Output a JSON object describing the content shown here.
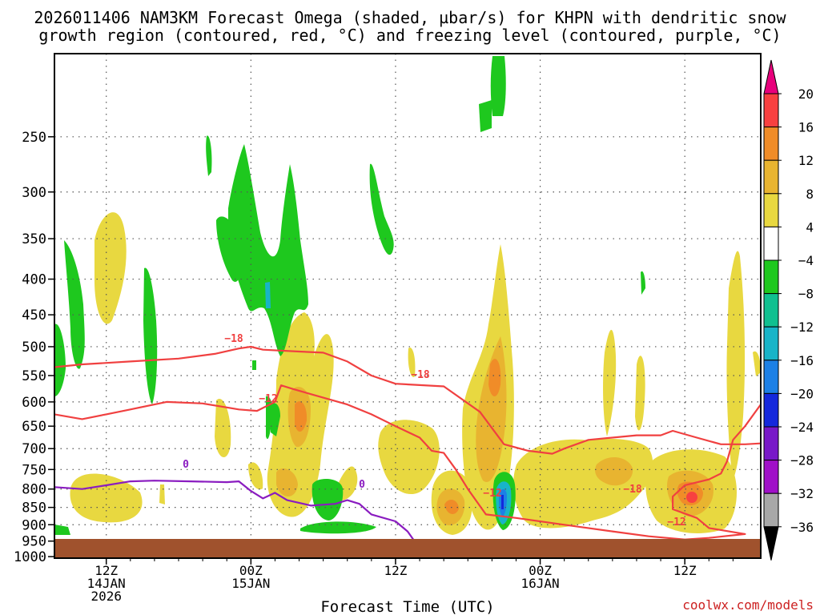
{
  "chart_data": {
    "type": "heatmap",
    "title": [
      "2026011406 NAM3KM Forecast Omega (shaded, µbar/s) for KHPN with dendritic snow",
      "growth region (contoured, red, °C) and freezing level (contoured, purple, °C)"
    ],
    "xlabel": "Forecast Time (UTC)",
    "xlim_hours": [
      -4.3,
      54.3
    ],
    "x_ticks": [
      {
        "hour": 0,
        "lines": [
          "12Z",
          "14JAN",
          "2026"
        ]
      },
      {
        "hour": 12,
        "lines": [
          "00Z",
          "15JAN"
        ]
      },
      {
        "hour": 24,
        "lines": [
          "12Z"
        ]
      },
      {
        "hour": 36,
        "lines": [
          "00Z",
          "16JAN"
        ]
      },
      {
        "hour": 48,
        "lines": [
          "12Z"
        ]
      }
    ],
    "y_ticks_hpa": [
      250,
      300,
      350,
      400,
      450,
      500,
      550,
      600,
      650,
      700,
      750,
      800,
      850,
      900,
      950,
      1000
    ],
    "ylim_hpa": [
      190,
      1005
    ],
    "colorbar": {
      "labels": [
        "20",
        "16",
        "12",
        "8",
        "4",
        "−4",
        "−8",
        "−12",
        "−16",
        "−20",
        "−24",
        "−28",
        "−32",
        "−36"
      ],
      "colors": [
        "#e8007c",
        "#f84040",
        "#f08c28",
        "#e8b430",
        "#e8d840",
        "#ffffff",
        "#1ec81e",
        "#10c090",
        "#18b4c8",
        "#1c80e6",
        "#1428dc",
        "#7818c8",
        "#a010c8",
        "#a8a8a8",
        "#000000"
      ]
    },
    "omega_positive_color": "#e8d840",
    "omega_negative_color": "#1ec81e",
    "contours": [
      {
        "name": "dgz -18C",
        "color": "#f04040",
        "label": "−18",
        "points": [
          [
            -4.3,
            535
          ],
          [
            -2,
            530
          ],
          [
            2,
            525
          ],
          [
            6,
            520
          ],
          [
            9,
            512
          ],
          [
            11,
            503
          ],
          [
            12,
            500
          ],
          [
            13,
            505
          ],
          [
            16,
            508
          ],
          [
            18,
            510
          ],
          [
            20,
            525
          ],
          [
            22,
            550
          ],
          [
            24,
            565
          ],
          [
            28,
            570
          ],
          [
            31,
            620
          ],
          [
            33,
            690
          ],
          [
            35,
            705
          ],
          [
            37,
            712
          ],
          [
            38,
            700
          ],
          [
            40,
            680
          ],
          [
            44,
            670
          ],
          [
            46,
            670
          ],
          [
            47,
            660
          ],
          [
            49,
            675
          ],
          [
            51,
            690
          ],
          [
            53,
            690
          ],
          [
            54.3,
            688
          ]
        ]
      },
      {
        "name": "dgz -12C",
        "color": "#f04040",
        "label": "−12",
        "points": [
          [
            -4.3,
            625
          ],
          [
            -2,
            635
          ],
          [
            0,
            625
          ],
          [
            2,
            615
          ],
          [
            5,
            600
          ],
          [
            8,
            603
          ],
          [
            11,
            615
          ],
          [
            12.5,
            618
          ],
          [
            14,
            600
          ],
          [
            14.5,
            568
          ],
          [
            15.5,
            575
          ],
          [
            17,
            585
          ],
          [
            20,
            605
          ],
          [
            22,
            625
          ],
          [
            24,
            650
          ],
          [
            26,
            675
          ],
          [
            27,
            705
          ],
          [
            28,
            710
          ],
          [
            29,
            750
          ],
          [
            30,
            800
          ],
          [
            31.5,
            870
          ],
          [
            34,
            880
          ],
          [
            38,
            900
          ],
          [
            42,
            920
          ],
          [
            45,
            935
          ],
          [
            48,
            945
          ],
          [
            50,
            940
          ],
          [
            53,
            928
          ],
          [
            50,
            910
          ],
          [
            49,
            880
          ],
          [
            47,
            855
          ],
          [
            47,
            820
          ],
          [
            48,
            790
          ],
          [
            50,
            775
          ],
          [
            51,
            760
          ],
          [
            51.5,
            730
          ],
          [
            52,
            680
          ],
          [
            53,
            650
          ],
          [
            54.3,
            605
          ]
        ]
      },
      {
        "name": "freezing level 0C",
        "color": "#8a1cc0",
        "label": "0",
        "points": [
          [
            -4.3,
            795
          ],
          [
            -2,
            800
          ],
          [
            0,
            790
          ],
          [
            2,
            780
          ],
          [
            4,
            778
          ],
          [
            7,
            780
          ],
          [
            10,
            782
          ],
          [
            11,
            780
          ],
          [
            12,
            805
          ],
          [
            13,
            825
          ],
          [
            14,
            810
          ],
          [
            15,
            830
          ],
          [
            17,
            845
          ],
          [
            19,
            840
          ],
          [
            20,
            830
          ],
          [
            21,
            840
          ],
          [
            22,
            870
          ],
          [
            24,
            890
          ],
          [
            25,
            920
          ],
          [
            26.3,
            990
          ]
        ]
      }
    ],
    "background_ground_color": "#a0522d",
    "credit": "coolwx.com/models"
  }
}
